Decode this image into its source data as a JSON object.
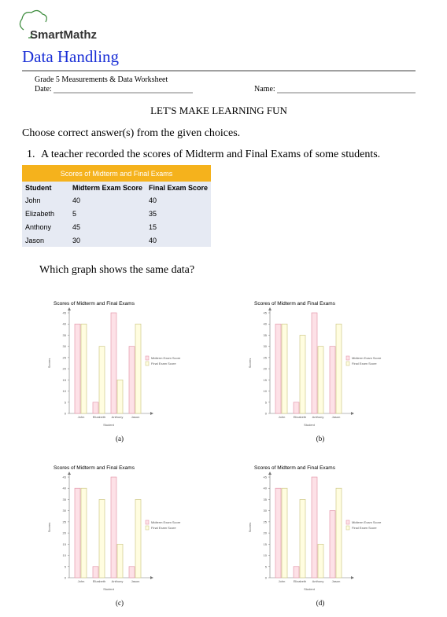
{
  "header": {
    "logo": "SmartMathz",
    "title": "Data Handling",
    "worksheet": "Grade 5 Measurements & Data Worksheet",
    "date_label": "Date:",
    "name_label": "Name:",
    "slogan": "LET'S MAKE LEARNING FUN"
  },
  "instructions": "Choose correct answer(s) from the given choices.",
  "question": {
    "number": "1.",
    "text": "A teacher recorded the scores of Midterm and Final Exams of some students.",
    "prompt": "Which graph shows the same data?"
  },
  "table": {
    "title": "Scores of Midterm and Final Exams",
    "columns": [
      "Student",
      "Midterm Exam Score",
      "Final Exam Score"
    ],
    "rows": [
      [
        "John",
        40,
        40
      ],
      [
        "Elizabeth",
        5,
        35
      ],
      [
        "Anthony",
        45,
        15
      ],
      [
        "Jason",
        30,
        40
      ]
    ]
  },
  "chart_data": [
    {
      "type": "bar",
      "title": "Scores of Midterm and Final Exams",
      "caption": "(a)",
      "x_label": "Student",
      "y_label": "Scores",
      "categories": [
        "John",
        "Elizabeth",
        "Anthony",
        "Jason"
      ],
      "series": [
        {
          "name": "Midterm Exam Score",
          "color": "#fde1e7",
          "values": [
            40,
            5,
            45,
            30
          ]
        },
        {
          "name": "Final Exam Score",
          "color": "#fffde0",
          "values": [
            40,
            30,
            15,
            40
          ]
        }
      ],
      "ylim": [
        0,
        45
      ],
      "yticks": [
        0,
        5,
        10,
        15,
        20,
        25,
        30,
        35,
        40,
        45
      ]
    },
    {
      "type": "bar",
      "title": "Scores of Midterm and Final Exams",
      "caption": "(b)",
      "x_label": "Student",
      "y_label": "Scores",
      "categories": [
        "John",
        "Elizabeth",
        "Anthony",
        "Jason"
      ],
      "series": [
        {
          "name": "Midterm Exam Score",
          "color": "#fde1e7",
          "values": [
            40,
            5,
            45,
            30
          ]
        },
        {
          "name": "Final Exam Score",
          "color": "#fffde0",
          "values": [
            40,
            35,
            30,
            40
          ]
        }
      ],
      "ylim": [
        0,
        45
      ],
      "yticks": [
        0,
        5,
        10,
        15,
        20,
        25,
        30,
        35,
        40,
        45
      ]
    },
    {
      "type": "bar",
      "title": "Scores of Midterm and Final Exams",
      "caption": "(c)",
      "x_label": "Student",
      "y_label": "Scores",
      "categories": [
        "John",
        "Elizabeth",
        "Anthony",
        "Jason"
      ],
      "series": [
        {
          "name": "Midterm Exam Score",
          "color": "#fde1e7",
          "values": [
            40,
            5,
            45,
            5
          ]
        },
        {
          "name": "Final Exam Score",
          "color": "#fffde0",
          "values": [
            40,
            35,
            15,
            35
          ]
        }
      ],
      "ylim": [
        0,
        45
      ],
      "yticks": [
        0,
        5,
        10,
        15,
        20,
        25,
        30,
        35,
        40,
        45
      ]
    },
    {
      "type": "bar",
      "title": "Scores of Midterm and Final Exams",
      "caption": "(d)",
      "x_label": "Student",
      "y_label": "Scores",
      "categories": [
        "John",
        "Elizabeth",
        "Anthony",
        "Jason"
      ],
      "series": [
        {
          "name": "Midterm Exam Score",
          "color": "#fde1e7",
          "values": [
            40,
            5,
            45,
            30
          ]
        },
        {
          "name": "Final Exam Score",
          "color": "#fffde0",
          "values": [
            40,
            35,
            15,
            40
          ]
        }
      ],
      "ylim": [
        0,
        45
      ],
      "yticks": [
        0,
        5,
        10,
        15,
        20,
        25,
        30,
        35,
        40,
        45
      ]
    }
  ]
}
